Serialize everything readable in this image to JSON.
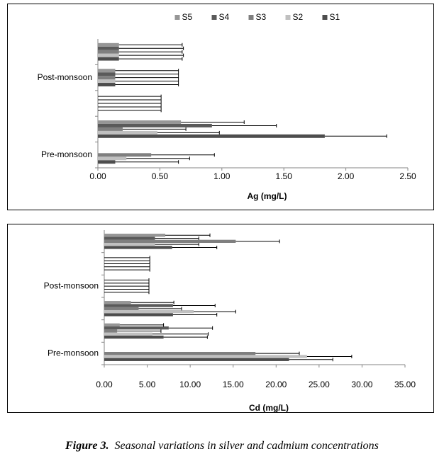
{
  "chart_data": [
    {
      "type": "bar",
      "x_label": "Ag (mg/L)",
      "legend": "top",
      "categories": [
        "Pre-monsoon",
        null,
        null,
        "Post-monsoon",
        null
      ],
      "series": [
        {
          "name": "S1",
          "color": "#4d4d4d",
          "values": [
            0.14,
            1.83,
            0,
            0.14,
            0.17
          ],
          "errors": [
            0.51,
            0.5,
            0.51,
            0.51,
            0.51
          ]
        },
        {
          "name": "S2",
          "color": "#c0c0c0",
          "values": [
            0.23,
            0.48,
            0,
            0.14,
            0.17
          ],
          "errors": [
            0.51,
            0.5,
            0.51,
            0.51,
            0.52
          ]
        },
        {
          "name": "S3",
          "color": "#7f7f7f",
          "values": [
            0.43,
            0.2,
            0,
            0.14,
            0.17
          ],
          "errors": [
            0.51,
            0.51,
            0.51,
            0.51,
            0.51
          ]
        },
        {
          "name": "S4",
          "color": "#5a5a5a",
          "values": [
            null,
            0.92,
            0,
            0.14,
            0.17
          ],
          "errors": [
            null,
            0.52,
            0.51,
            0.51,
            0.52
          ]
        },
        {
          "name": "S5",
          "color": "#969696",
          "values": [
            null,
            0.67,
            0,
            0.14,
            0.17
          ],
          "errors": [
            null,
            0.51,
            0.51,
            0.51,
            0.51
          ]
        }
      ],
      "xlim": [
        0,
        2.5
      ],
      "xticks": [
        {
          "value": 0,
          "label": "0.00"
        },
        {
          "value": 0.5,
          "label": "0.50"
        },
        {
          "value": 1,
          "label": "1.00"
        },
        {
          "value": 1.5,
          "label": "1.50"
        },
        {
          "value": 2,
          "label": "2.00"
        },
        {
          "value": 2.5,
          "label": "2.50"
        }
      ]
    },
    {
      "type": "bar",
      "x_label": "Cd (mg/L)",
      "categories": [
        "Pre-monsoon",
        null,
        null,
        "Post-monsoon",
        null,
        null
      ],
      "series": [
        {
          "color": "#4d4d4d",
          "values": [
            21.5,
            6.9,
            8.0,
            0,
            0,
            7.9
          ],
          "errors": [
            5.1,
            5.1,
            5.1,
            5.2,
            5.3,
            5.2
          ]
        },
        {
          "color": "#c0c0c0",
          "values": [
            23.6,
            5.6,
            10.4,
            0,
            0,
            5.9
          ],
          "errors": [
            5.2,
            6.5,
            4.9,
            5.2,
            5.3,
            5.1
          ]
        },
        {
          "color": "#7f7f7f",
          "values": [
            17.6,
            1.5,
            4.0,
            0,
            0,
            15.3
          ],
          "errors": [
            5.1,
            5.1,
            5.0,
            5.2,
            5.3,
            5.1
          ]
        },
        {
          "color": "#5a5a5a",
          "values": [
            null,
            7.5,
            8.0,
            0,
            0,
            5.9
          ],
          "errors": [
            null,
            5.1,
            4.9,
            5.2,
            5.3,
            5.1
          ]
        },
        {
          "color": "#969696",
          "values": [
            null,
            1.8,
            3.1,
            0,
            0,
            7.1
          ],
          "errors": [
            null,
            5.1,
            5.0,
            5.2,
            5.3,
            5.2
          ]
        }
      ],
      "xlim": [
        0,
        35
      ],
      "xticks": [
        {
          "value": 0,
          "label": "0.00"
        },
        {
          "value": 5,
          "label": "5.00"
        },
        {
          "value": 10,
          "label": "10.00"
        },
        {
          "value": 15,
          "label": "15.00"
        },
        {
          "value": 20,
          "label": "20.00"
        },
        {
          "value": 25,
          "label": "25.00"
        },
        {
          "value": 30,
          "label": "30.00"
        },
        {
          "value": 35,
          "label": "35.00"
        }
      ]
    }
  ],
  "caption": {
    "label": "Figure 3.",
    "text": "Seasonal variations in silver and cadmium concentrations"
  }
}
